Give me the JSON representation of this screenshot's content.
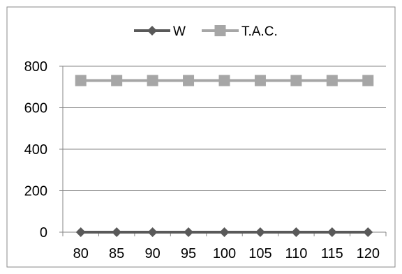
{
  "chart_data": {
    "type": "line",
    "categories": [
      "80",
      "85",
      "90",
      "95",
      "100",
      "105",
      "110",
      "115",
      "120"
    ],
    "series": [
      {
        "name": "W",
        "values": [
          0,
          0,
          0,
          0,
          0,
          0,
          0,
          0,
          0
        ],
        "color": "#595959",
        "marker": "diamond"
      },
      {
        "name": "T.A.C.",
        "values": [
          731,
          731,
          731,
          731,
          731,
          731,
          731,
          731,
          731
        ],
        "color": "#a6a6a6",
        "marker": "square"
      }
    ],
    "ylim": [
      0,
      800
    ],
    "yticks": [
      0,
      200,
      400,
      600,
      800
    ],
    "grid": true,
    "legend_position": "top-center",
    "frame_color": "#888888",
    "grid_color": "#868686",
    "axis_color": "#868686"
  }
}
